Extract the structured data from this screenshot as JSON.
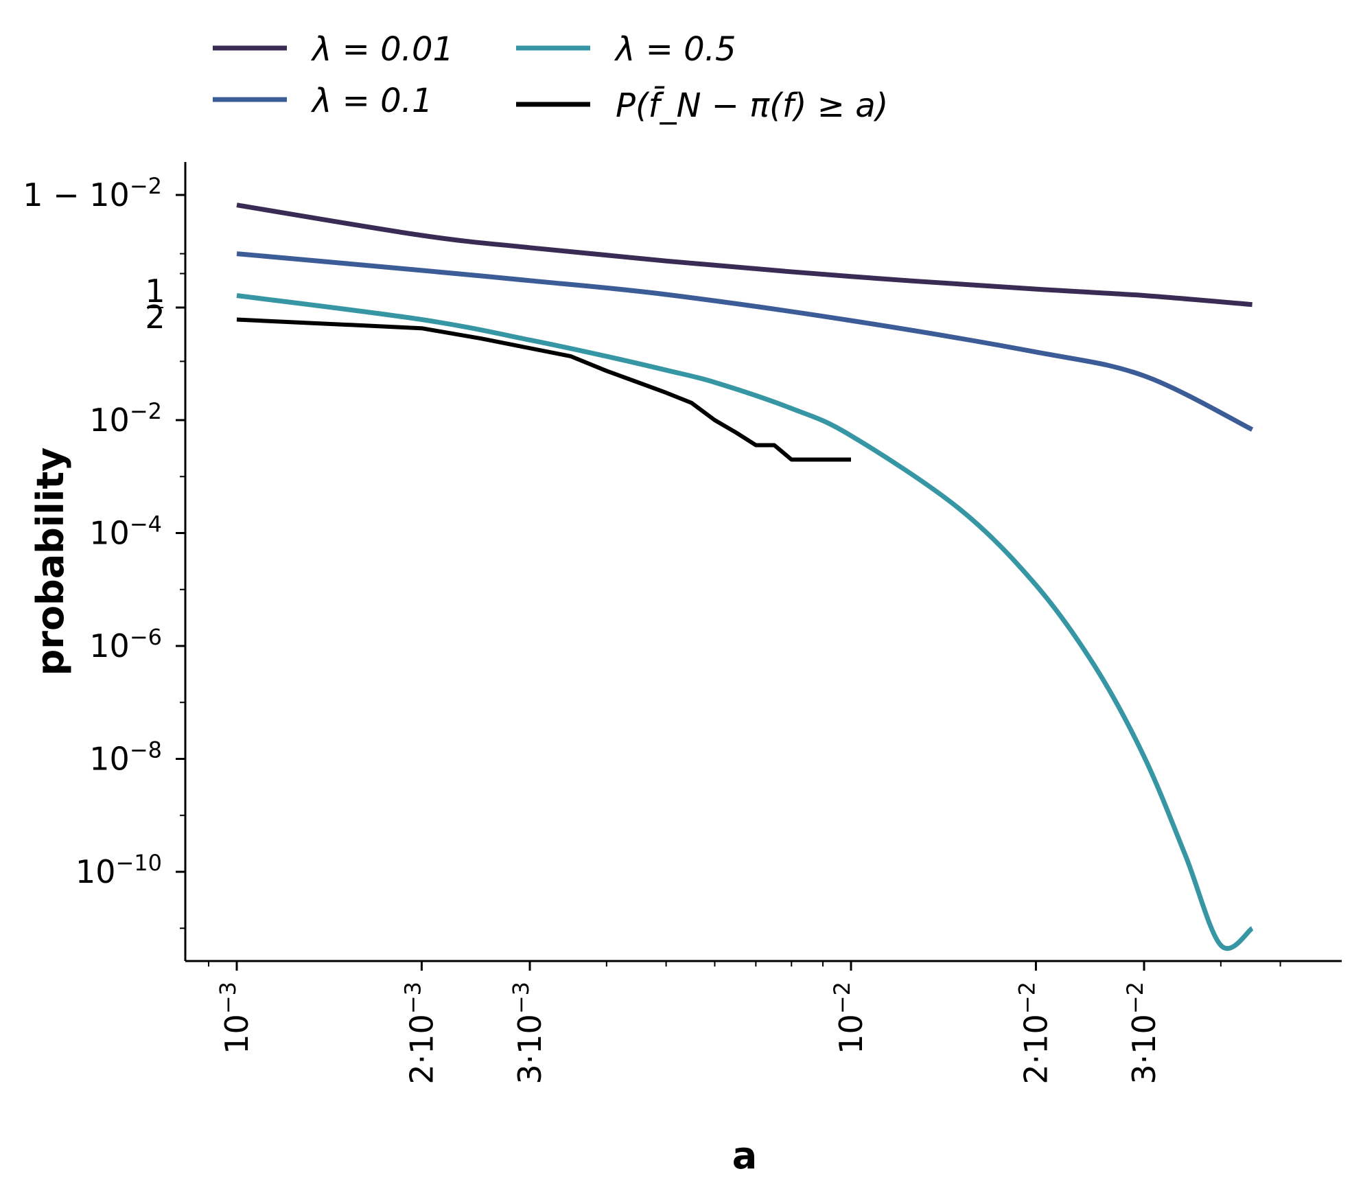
{
  "chart_data": {
    "type": "line",
    "xlabel": "a",
    "ylabel": "probability",
    "xscale": "log",
    "yscale": "log",
    "xlim": [
      0.00075,
      0.053
    ],
    "grid": false,
    "legend_position": "top",
    "x_ticks": [
      {
        "value": 0.001,
        "label": "10^-3"
      },
      {
        "value": 0.002,
        "label": "2·10^-3"
      },
      {
        "value": 0.003,
        "label": "3·10^-3"
      },
      {
        "value": 0.01,
        "label": "10^-2"
      },
      {
        "value": 0.02,
        "label": "2·10^-2"
      },
      {
        "value": 0.03,
        "label": "3·10^-2"
      }
    ],
    "x_minor_ticks": [
      0.0009,
      0.004,
      0.005,
      0.006,
      0.007,
      0.008,
      0.009,
      0.04,
      0.05
    ],
    "y_ticks": [
      {
        "value": 0.99,
        "label": "1 − 10^-2"
      },
      {
        "value": 0.5,
        "label": "1/2"
      },
      {
        "value": 0.01,
        "label": "10^-2"
      },
      {
        "value": 0.0001,
        "label": "10^-4"
      },
      {
        "value": 1e-06,
        "label": "10^-6"
      },
      {
        "value": 1e-08,
        "label": "10^-8"
      },
      {
        "value": 1e-10,
        "label": "10^-10"
      }
    ],
    "series": [
      {
        "name": "λ = 0.01",
        "color": "#3a2b55",
        "x": [
          0.001,
          0.002,
          0.003,
          0.005,
          0.01,
          0.02,
          0.03,
          0.045
        ],
        "y": [
          0.985,
          0.95,
          0.92,
          0.87,
          0.78,
          0.68,
          0.62,
          0.53
        ]
      },
      {
        "name": "λ = 0.1",
        "color": "#3c5c97",
        "x": [
          0.001,
          0.002,
          0.003,
          0.005,
          0.01,
          0.02,
          0.03,
          0.045
        ],
        "y": [
          0.9,
          0.82,
          0.75,
          0.63,
          0.37,
          0.14,
          0.058,
          0.0068
        ]
      },
      {
        "name": "λ = 0.5",
        "color": "#3796a4",
        "x": [
          0.001,
          0.002,
          0.003,
          0.004,
          0.005,
          0.006,
          0.008,
          0.01,
          0.015,
          0.02,
          0.025,
          0.03,
          0.035,
          0.04,
          0.045
        ],
        "y": [
          0.62,
          0.38,
          0.21,
          0.12,
          0.072,
          0.045,
          0.016,
          0.0053,
          0.00027,
          1.2e-05,
          4.2e-07,
          1.1e-08,
          2e-10,
          5e-12,
          1e-11
        ]
      },
      {
        "name": "P(f̄_N − π(f) ≥ a)",
        "color": "#000000",
        "step": true,
        "x": [
          0.001,
          0.002,
          0.0025,
          0.0035,
          0.004,
          0.0045,
          0.005,
          0.0055,
          0.006,
          0.0065,
          0.007,
          0.0075,
          0.008,
          0.0085,
          0.009,
          0.0095,
          0.01
        ],
        "y": [
          0.38,
          0.3,
          0.22,
          0.12,
          0.07,
          0.045,
          0.03,
          0.02,
          0.01,
          0.006,
          0.0036,
          0.0036,
          0.002,
          0.002,
          0.002,
          0.002,
          0.002
        ]
      }
    ]
  }
}
